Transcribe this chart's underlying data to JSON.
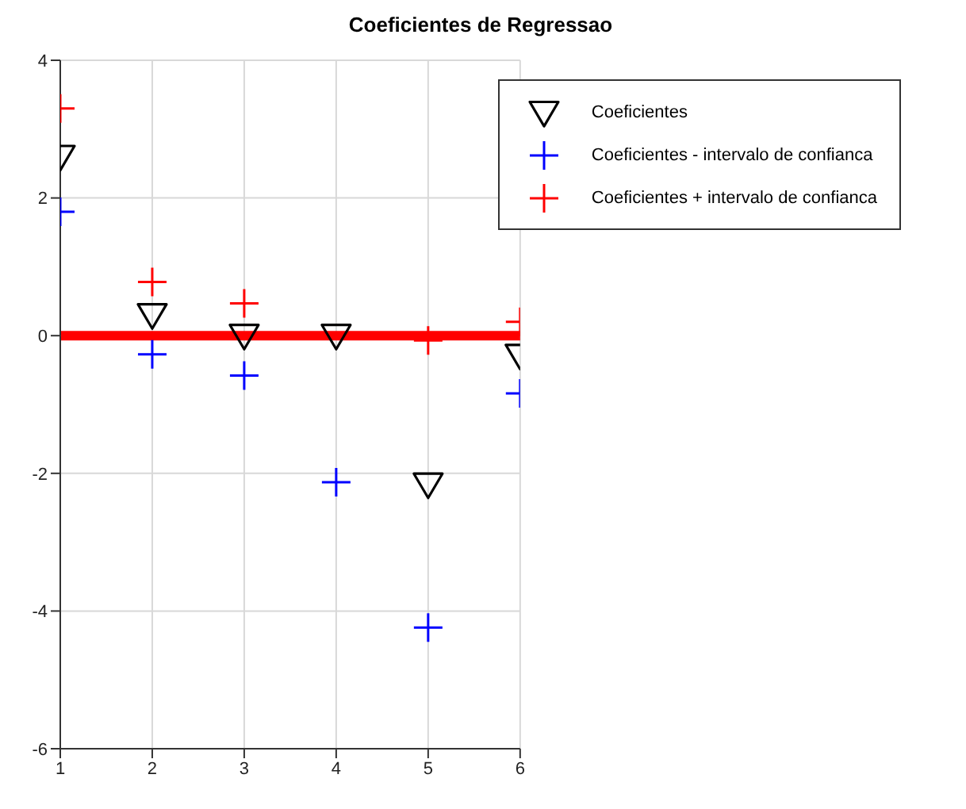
{
  "chart_data": {
    "type": "scatter",
    "title": "Coeficientes de Regressao",
    "x": [
      1,
      2,
      3,
      4,
      5,
      6
    ],
    "series": [
      {
        "name": "Coeficientes",
        "color": "#000000",
        "marker": "triangle",
        "values": [
          2.6,
          0.3,
          0.0,
          0.0,
          -2.16,
          -0.29
        ]
      },
      {
        "name": "Coeficientes - intervalo de confianca",
        "color": "#0000ff",
        "marker": "cross",
        "values": [
          1.8,
          -0.27,
          -0.58,
          -2.13,
          -4.24,
          -0.84
        ]
      },
      {
        "name": "Coeficientes + intervalo de confianca",
        "color": "#ff0000",
        "marker": "cross",
        "values": [
          3.3,
          0.78,
          0.47,
          null,
          -0.07,
          0.2
        ]
      }
    ],
    "xlim": [
      1,
      6
    ],
    "xticks": [
      1,
      2,
      3,
      4,
      5,
      6
    ],
    "ylim": [
      -6,
      4
    ],
    "yticks": [
      -6,
      -4,
      -2,
      0,
      2,
      4
    ],
    "ref_lines": [
      {
        "axis": "y",
        "value": 0,
        "color": "#ff0000"
      }
    ],
    "grid": true,
    "legend": "top right"
  }
}
